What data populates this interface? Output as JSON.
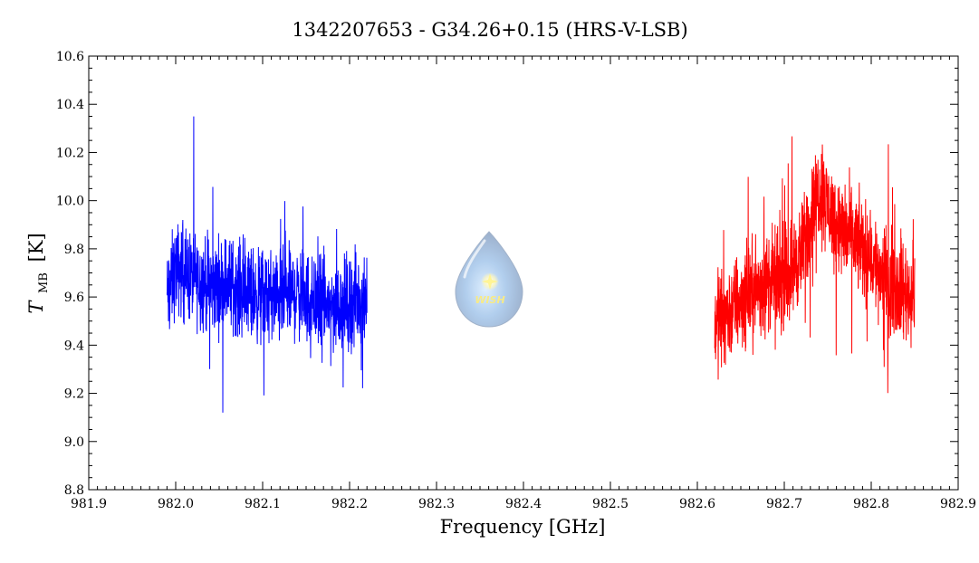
{
  "chart_data": {
    "type": "line",
    "title": "1342207653 - G34.26+0.15 (HRS-V-LSB)",
    "xlabel": "Frequency [GHz]",
    "ylabel": {
      "symbol": "T",
      "subscript": "MB",
      "unit": "[K]"
    },
    "xlim": [
      981.9,
      982.9
    ],
    "ylim": [
      8.8,
      10.6
    ],
    "x_ticks": [
      "981.9",
      "982.0",
      "982.1",
      "982.2",
      "982.3",
      "982.4",
      "982.5",
      "982.6",
      "982.7",
      "982.8",
      "982.9"
    ],
    "y_ticks": [
      "8.8",
      "9.0",
      "9.2",
      "9.4",
      "9.6",
      "9.8",
      "10.0",
      "10.2",
      "10.4",
      "10.6"
    ],
    "grid": false,
    "logo_text": "WISH",
    "series": [
      {
        "color": "#0000ff",
        "x": [
          981.99,
          982.0,
          982.02,
          982.04,
          982.06,
          982.08,
          982.1,
          982.12,
          982.14,
          982.16,
          982.18,
          982.2,
          982.22
        ],
        "y": [
          9.6,
          9.72,
          9.68,
          9.64,
          9.66,
          9.62,
          9.6,
          9.6,
          9.62,
          9.58,
          9.56,
          9.58,
          9.6
        ],
        "noise_amplitude": 0.28
      },
      {
        "color": "#ff0000",
        "x": [
          982.62,
          982.64,
          982.66,
          982.68,
          982.7,
          982.72,
          982.73,
          982.74,
          982.75,
          982.76,
          982.78,
          982.8,
          982.82,
          982.85
        ],
        "y": [
          9.5,
          9.55,
          9.62,
          9.66,
          9.68,
          9.78,
          9.92,
          10.05,
          9.98,
          9.9,
          9.84,
          9.76,
          9.66,
          9.6
        ],
        "noise_amplitude": 0.3
      }
    ]
  }
}
